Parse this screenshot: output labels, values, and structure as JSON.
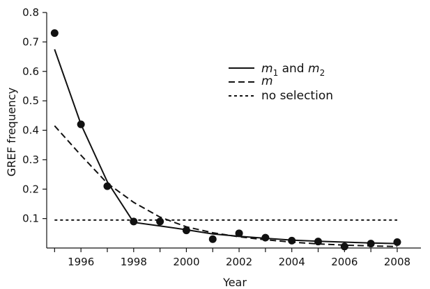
{
  "chart_data": {
    "type": "line",
    "title": "",
    "xlabel": "Year",
    "ylabel": "GREF frequency",
    "xlim": [
      1994.7,
      2008.9
    ],
    "ylim": [
      0,
      0.8
    ],
    "x_ticks": [
      1995,
      1996,
      1997,
      1998,
      1999,
      2000,
      2001,
      2002,
      2003,
      2004,
      2005,
      2006,
      2007,
      2008
    ],
    "x_tick_labels": [
      "1996",
      "1998",
      "2000",
      "2002",
      "2004",
      "2006",
      "2008"
    ],
    "x_tick_label_values": [
      1996,
      1998,
      2000,
      2002,
      2004,
      2006,
      2008
    ],
    "y_ticks": [
      0.1,
      0.2,
      0.3,
      0.4,
      0.5,
      0.6,
      0.7,
      0.8
    ],
    "y_tick_labels": [
      "0.1",
      "0.2",
      "0.3",
      "0.4",
      "0.5",
      "0.6",
      "0.7",
      "0.8"
    ],
    "grid": false,
    "legend_position": "top-right",
    "observed": {
      "x": [
        1995,
        1996,
        1997,
        1998,
        1999,
        2000,
        2001,
        2002,
        2003,
        2004,
        2005,
        2006,
        2007,
        2008
      ],
      "y": [
        0.73,
        0.42,
        0.21,
        0.09,
        0.09,
        0.06,
        0.03,
        0.05,
        0.035,
        0.025,
        0.022,
        0.005,
        0.015,
        0.02
      ]
    },
    "series": [
      {
        "name": "m1 and m2",
        "style": "solid",
        "x": [
          1995,
          1996,
          1997,
          1998,
          1999,
          2000,
          2001,
          2002,
          2003,
          2004,
          2005,
          2006,
          2007,
          2008
        ],
        "y": [
          0.675,
          0.42,
          0.225,
          0.087,
          0.075,
          0.062,
          0.048,
          0.04,
          0.033,
          0.027,
          0.023,
          0.02,
          0.017,
          0.015
        ]
      },
      {
        "name": "m",
        "style": "dashed",
        "x": [
          1995,
          1996,
          1997,
          1998,
          1999,
          2000,
          2001,
          2002,
          2003,
          2004,
          2005,
          2006,
          2007,
          2008
        ],
        "y": [
          0.415,
          0.315,
          0.22,
          0.155,
          0.105,
          0.072,
          0.052,
          0.038,
          0.028,
          0.02,
          0.014,
          0.01,
          0.007,
          0.005
        ]
      },
      {
        "name": "no selection",
        "style": "dotted",
        "x": [
          1995,
          2008
        ],
        "y": [
          0.095,
          0.095
        ]
      }
    ],
    "legend": {
      "m1m2": {
        "sym1": "m",
        "sub1": "1",
        "mid": " and ",
        "sym2": "m",
        "sub2": "2"
      },
      "m": {
        "sym": "m"
      },
      "none": {
        "label": "no selection"
      }
    },
    "colors": {
      "line": "#111111",
      "marker": "#111111",
      "background": "#ffffff"
    }
  }
}
